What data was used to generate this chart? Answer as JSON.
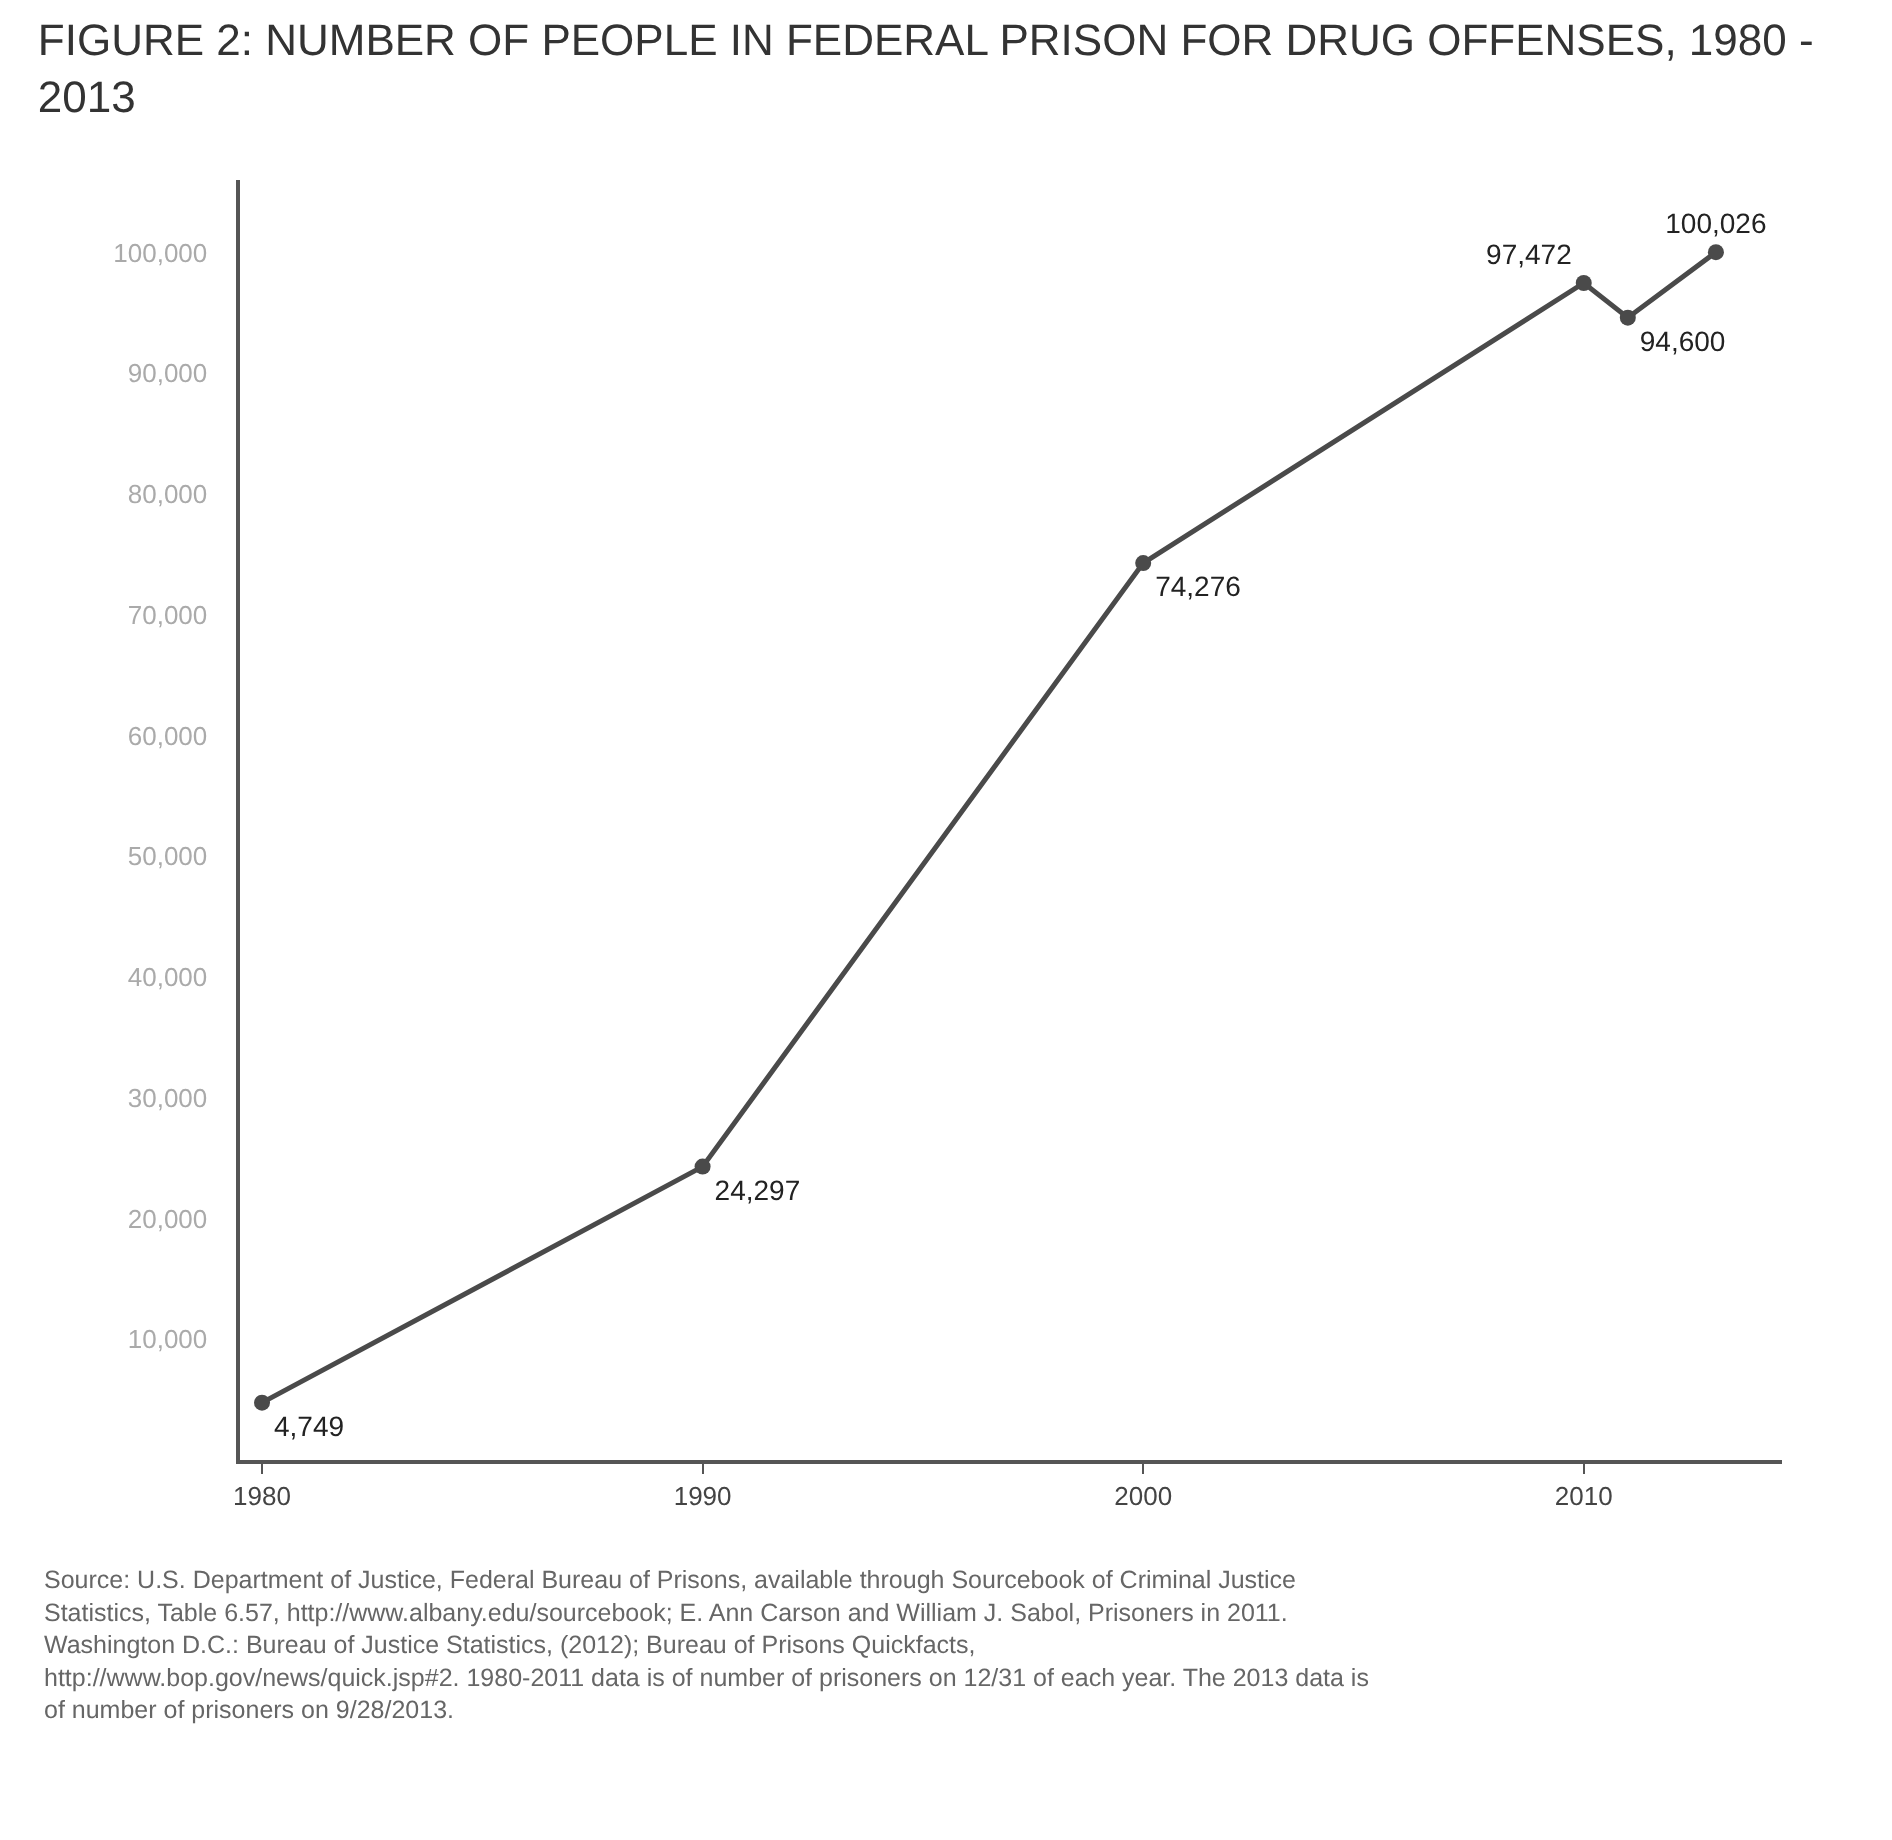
{
  "chart_data": {
    "type": "line",
    "title": "FIGURE 2: NUMBER OF PEOPLE IN FEDERAL PRISON FOR DRUG OFFENSES, 1980 - 2013",
    "x": [
      1980,
      1990,
      2000,
      2010,
      2011,
      2013
    ],
    "series": [
      {
        "color": "#4a4a4a",
        "values": [
          4749,
          24297,
          74276,
          97472,
          94600,
          100026
        ],
        "value_labels": [
          "4,749",
          "24,297",
          "74,276",
          "97,472",
          "94,600",
          "100,026"
        ]
      }
    ],
    "marker": "circle",
    "line_style": "solid",
    "xlim": [
      1979.5,
      2014.5
    ],
    "xticks": [
      1980,
      1990,
      2000,
      2010
    ],
    "ylim": [
      0,
      106000
    ],
    "yticks": [
      {
        "value": 10000,
        "label": "10,000"
      },
      {
        "value": 20000,
        "label": "20,000"
      },
      {
        "value": 30000,
        "label": "30,000"
      },
      {
        "value": 40000,
        "label": "40,000"
      },
      {
        "value": 50000,
        "label": "50,000"
      },
      {
        "value": 60000,
        "label": "60,000"
      },
      {
        "value": 70000,
        "label": "70,000"
      },
      {
        "value": 80000,
        "label": "80,000"
      },
      {
        "value": 90000,
        "label": "90,000"
      },
      {
        "value": 100000,
        "label": "100,000"
      }
    ],
    "annotations": [
      "Source: U.S. Department of Justice, Federal Bureau of Prisons, available through Sourcebook of Criminal Justice Statistics, Table 6.57, http://www.albany.edu/sourcebook; E. Ann Carson and William J. Sabol, Prisoners in 2011. Washington D.C.: Bureau of Justice Statistics, (2012); Bureau of Prisons Quickfacts, http://www.bop.gov/news/quick.jsp#2. 1980-2011 data is of number of prisoners on 12/31 of each year. The 2013 data is of number of prisoners on 9/28/2013."
    ]
  }
}
